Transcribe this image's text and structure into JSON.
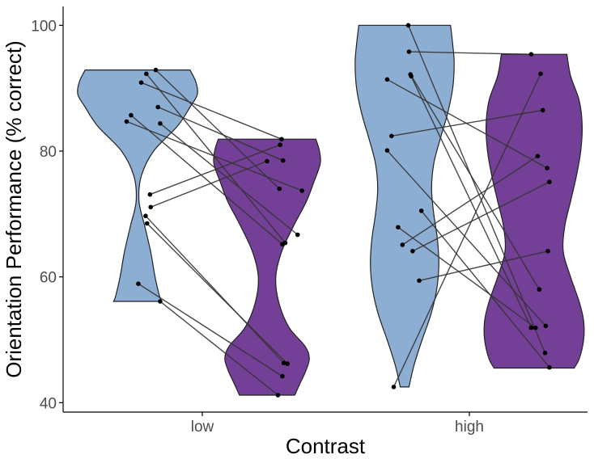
{
  "chart_data": {
    "type": "violin",
    "title": "",
    "xlabel": "Contrast",
    "ylabel": "Orientation Performance (% correct)",
    "ylim": [
      38.5,
      103
    ],
    "yticks": [
      40,
      60,
      80,
      100
    ],
    "categories": [
      "low",
      "high"
    ],
    "grid": false,
    "legend": "none",
    "series": [
      {
        "color": "#8DAED3"
      },
      {
        "color": "#743F97"
      }
    ],
    "violins": [
      {
        "category": "low",
        "series": 0,
        "color": "#8DAED3",
        "profile": [
          [
            56.1,
            0.33
          ],
          [
            57,
            0.3
          ],
          [
            60,
            0.24
          ],
          [
            64,
            0.18
          ],
          [
            68,
            0.1
          ],
          [
            72,
            0.02
          ],
          [
            76,
            0.05
          ],
          [
            80,
            0.22
          ],
          [
            84,
            0.55
          ],
          [
            87,
            0.72
          ],
          [
            89,
            0.82
          ],
          [
            91,
            0.8
          ],
          [
            92.9,
            0.72
          ]
        ]
      },
      {
        "category": "low",
        "series": 1,
        "color": "#743F97",
        "profile": [
          [
            41.2,
            0.38
          ],
          [
            43,
            0.45
          ],
          [
            45,
            0.53
          ],
          [
            47,
            0.58
          ],
          [
            49,
            0.52
          ],
          [
            52,
            0.3
          ],
          [
            56,
            0.16
          ],
          [
            60,
            0.12
          ],
          [
            64,
            0.2
          ],
          [
            68,
            0.36
          ],
          [
            72,
            0.54
          ],
          [
            75,
            0.64
          ],
          [
            78,
            0.73
          ],
          [
            80,
            0.72
          ],
          [
            81.9,
            0.67
          ]
        ]
      },
      {
        "category": "high",
        "series": 0,
        "color": "#8DAED3",
        "profile": [
          [
            42.5,
            0.06
          ],
          [
            46,
            0.13
          ],
          [
            50,
            0.24
          ],
          [
            54,
            0.36
          ],
          [
            58,
            0.44
          ],
          [
            62,
            0.47
          ],
          [
            66,
            0.45
          ],
          [
            70,
            0.4
          ],
          [
            74,
            0.37
          ],
          [
            78,
            0.4
          ],
          [
            82,
            0.49
          ],
          [
            86,
            0.59
          ],
          [
            90,
            0.66
          ],
          [
            94,
            0.68
          ],
          [
            97,
            0.66
          ],
          [
            100,
            0.63
          ]
        ]
      },
      {
        "category": "high",
        "series": 1,
        "color": "#743F97",
        "profile": [
          [
            45.5,
            0.55
          ],
          [
            47,
            0.62
          ],
          [
            50,
            0.68
          ],
          [
            53,
            0.68
          ],
          [
            56,
            0.62
          ],
          [
            60,
            0.5
          ],
          [
            64,
            0.4
          ],
          [
            68,
            0.42
          ],
          [
            72,
            0.5
          ],
          [
            76,
            0.58
          ],
          [
            80,
            0.64
          ],
          [
            84,
            0.66
          ],
          [
            88,
            0.62
          ],
          [
            92,
            0.5
          ],
          [
            95.4,
            0.45
          ]
        ]
      }
    ],
    "pairs": [
      {
        "category": "low",
        "values": [
          92.9,
          74.0
        ],
        "jitter": [
          0.25,
          0.17
        ]
      },
      {
        "category": "low",
        "values": [
          92.3,
          65.4
        ],
        "jitter": [
          0.12,
          0.25
        ]
      },
      {
        "category": "low",
        "values": [
          90.9,
          81.9
        ],
        "jitter": [
          0.05,
          0.2
        ]
      },
      {
        "category": "low",
        "values": [
          87.0,
          78.5
        ],
        "jitter": [
          0.28,
          0.22
        ]
      },
      {
        "category": "low",
        "values": [
          85.7,
          65.2
        ],
        "jitter": [
          -0.09,
          0.21
        ]
      },
      {
        "category": "low",
        "values": [
          84.4,
          66.7
        ],
        "jitter": [
          0.31,
          0.42
        ]
      },
      {
        "category": "low",
        "values": [
          84.7,
          73.7
        ],
        "jitter": [
          -0.15,
          0.48
        ]
      },
      {
        "category": "low",
        "values": [
          73.1,
          81.0
        ],
        "jitter": [
          0.17,
          0.18
        ]
      },
      {
        "category": "low",
        "values": [
          71.1,
          78.4
        ],
        "jitter": [
          0.18,
          0.0
        ]
      },
      {
        "category": "low",
        "values": [
          69.7,
          46.3
        ],
        "jitter": [
          0.11,
          0.23
        ]
      },
      {
        "category": "low",
        "values": [
          68.5,
          46.2
        ],
        "jitter": [
          0.13,
          0.28
        ]
      },
      {
        "category": "low",
        "values": [
          58.9,
          44.2
        ],
        "jitter": [
          0.01,
          0.21
        ]
      },
      {
        "category": "low",
        "values": [
          56.1,
          41.2
        ],
        "jitter": [
          0.31,
          0.15
        ]
      },
      {
        "category": "high",
        "values": [
          100.0,
          47.9
        ],
        "jitter": [
          0.05,
          0.15
        ]
      },
      {
        "category": "high",
        "values": [
          95.8,
          95.4
        ],
        "jitter": [
          0.06,
          -0.04
        ]
      },
      {
        "category": "high",
        "values": [
          92.2,
          58.0
        ],
        "jitter": [
          0.08,
          0.07
        ]
      },
      {
        "category": "high",
        "values": [
          91.9,
          51.9
        ],
        "jitter": [
          0.09,
          -0.04
        ]
      },
      {
        "category": "high",
        "values": [
          91.4,
          77.3
        ],
        "jitter": [
          -0.24,
          0.18
        ]
      },
      {
        "category": "high",
        "values": [
          82.4,
          86.5
        ],
        "jitter": [
          -0.18,
          0.12
        ]
      },
      {
        "category": "high",
        "values": [
          80.1,
          52.2
        ],
        "jitter": [
          -0.24,
          0.16
        ]
      },
      {
        "category": "high",
        "values": [
          70.5,
          45.6
        ],
        "jitter": [
          0.23,
          0.21
        ]
      },
      {
        "category": "high",
        "values": [
          67.9,
          51.9
        ],
        "jitter": [
          -0.09,
          0.02
        ]
      },
      {
        "category": "high",
        "values": [
          65.1,
          79.2
        ],
        "jitter": [
          -0.03,
          0.05
        ]
      },
      {
        "category": "high",
        "values": [
          64.1,
          75.1
        ],
        "jitter": [
          0.11,
          0.21
        ]
      },
      {
        "category": "high",
        "values": [
          59.4,
          64.1
        ],
        "jitter": [
          0.2,
          0.19
        ]
      },
      {
        "category": "high",
        "values": [
          42.5,
          92.3
        ],
        "jitter": [
          -0.15,
          0.09
        ]
      }
    ]
  }
}
